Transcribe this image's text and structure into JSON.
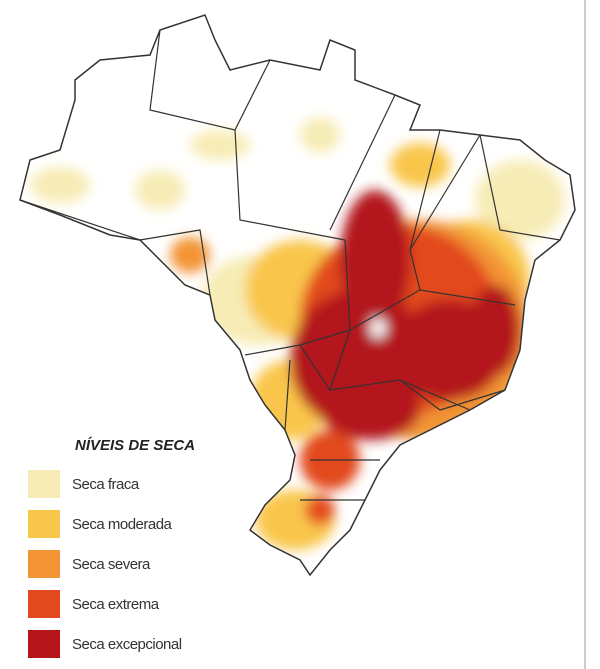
{
  "legend": {
    "title": "NÍVEIS DE SECA",
    "items": [
      {
        "label": "Seca fraca",
        "color": "#f7ecb5"
      },
      {
        "label": "Seca moderada",
        "color": "#f9c64c"
      },
      {
        "label": "Seca severa",
        "color": "#f29436"
      },
      {
        "label": "Seca extrema",
        "color": "#e2491f"
      },
      {
        "label": "Seca excepcional",
        "color": "#b3151b"
      }
    ]
  }
}
